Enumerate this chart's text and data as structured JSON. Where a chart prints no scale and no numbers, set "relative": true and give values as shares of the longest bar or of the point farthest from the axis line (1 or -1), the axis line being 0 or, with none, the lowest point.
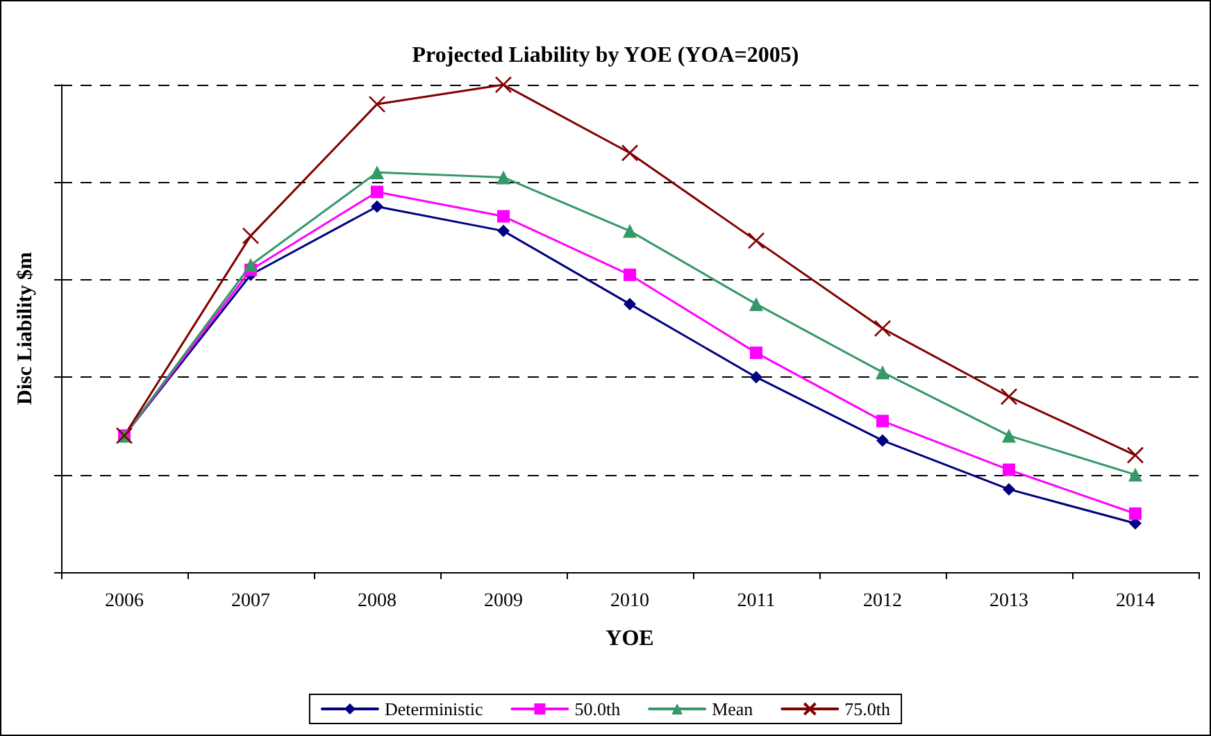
{
  "chart_data": {
    "type": "line",
    "title": "Projected Liability by YOE (YOA=2005)",
    "xlabel": "YOE",
    "ylabel": "Disc Liability $m",
    "relative": true,
    "grid": "y",
    "legend": "bottom",
    "line_style": "solid",
    "categories": [
      "2006",
      "2007",
      "2008",
      "2009",
      "2010",
      "2011",
      "2012",
      "2013",
      "2014"
    ],
    "series": [
      {
        "name": "Deterministic",
        "color": "#000080",
        "marker": "diamond",
        "values": [
          0.28,
          0.61,
          0.75,
          0.7,
          0.55,
          0.4,
          0.27,
          0.17,
          0.1
        ]
      },
      {
        "name": "50.0th",
        "color": "#ff00ff",
        "marker": "square",
        "values": [
          0.28,
          0.62,
          0.78,
          0.73,
          0.61,
          0.45,
          0.31,
          0.21,
          0.12
        ]
      },
      {
        "name": "Mean",
        "color": "#339966",
        "marker": "triangle",
        "values": [
          0.28,
          0.63,
          0.82,
          0.81,
          0.7,
          0.55,
          0.41,
          0.28,
          0.2
        ]
      },
      {
        "name": "75.0th",
        "color": "#800000",
        "marker": "cross",
        "values": [
          0.28,
          0.69,
          0.96,
          1,
          0.86,
          0.68,
          0.5,
          0.36,
          0.24
        ]
      }
    ]
  }
}
